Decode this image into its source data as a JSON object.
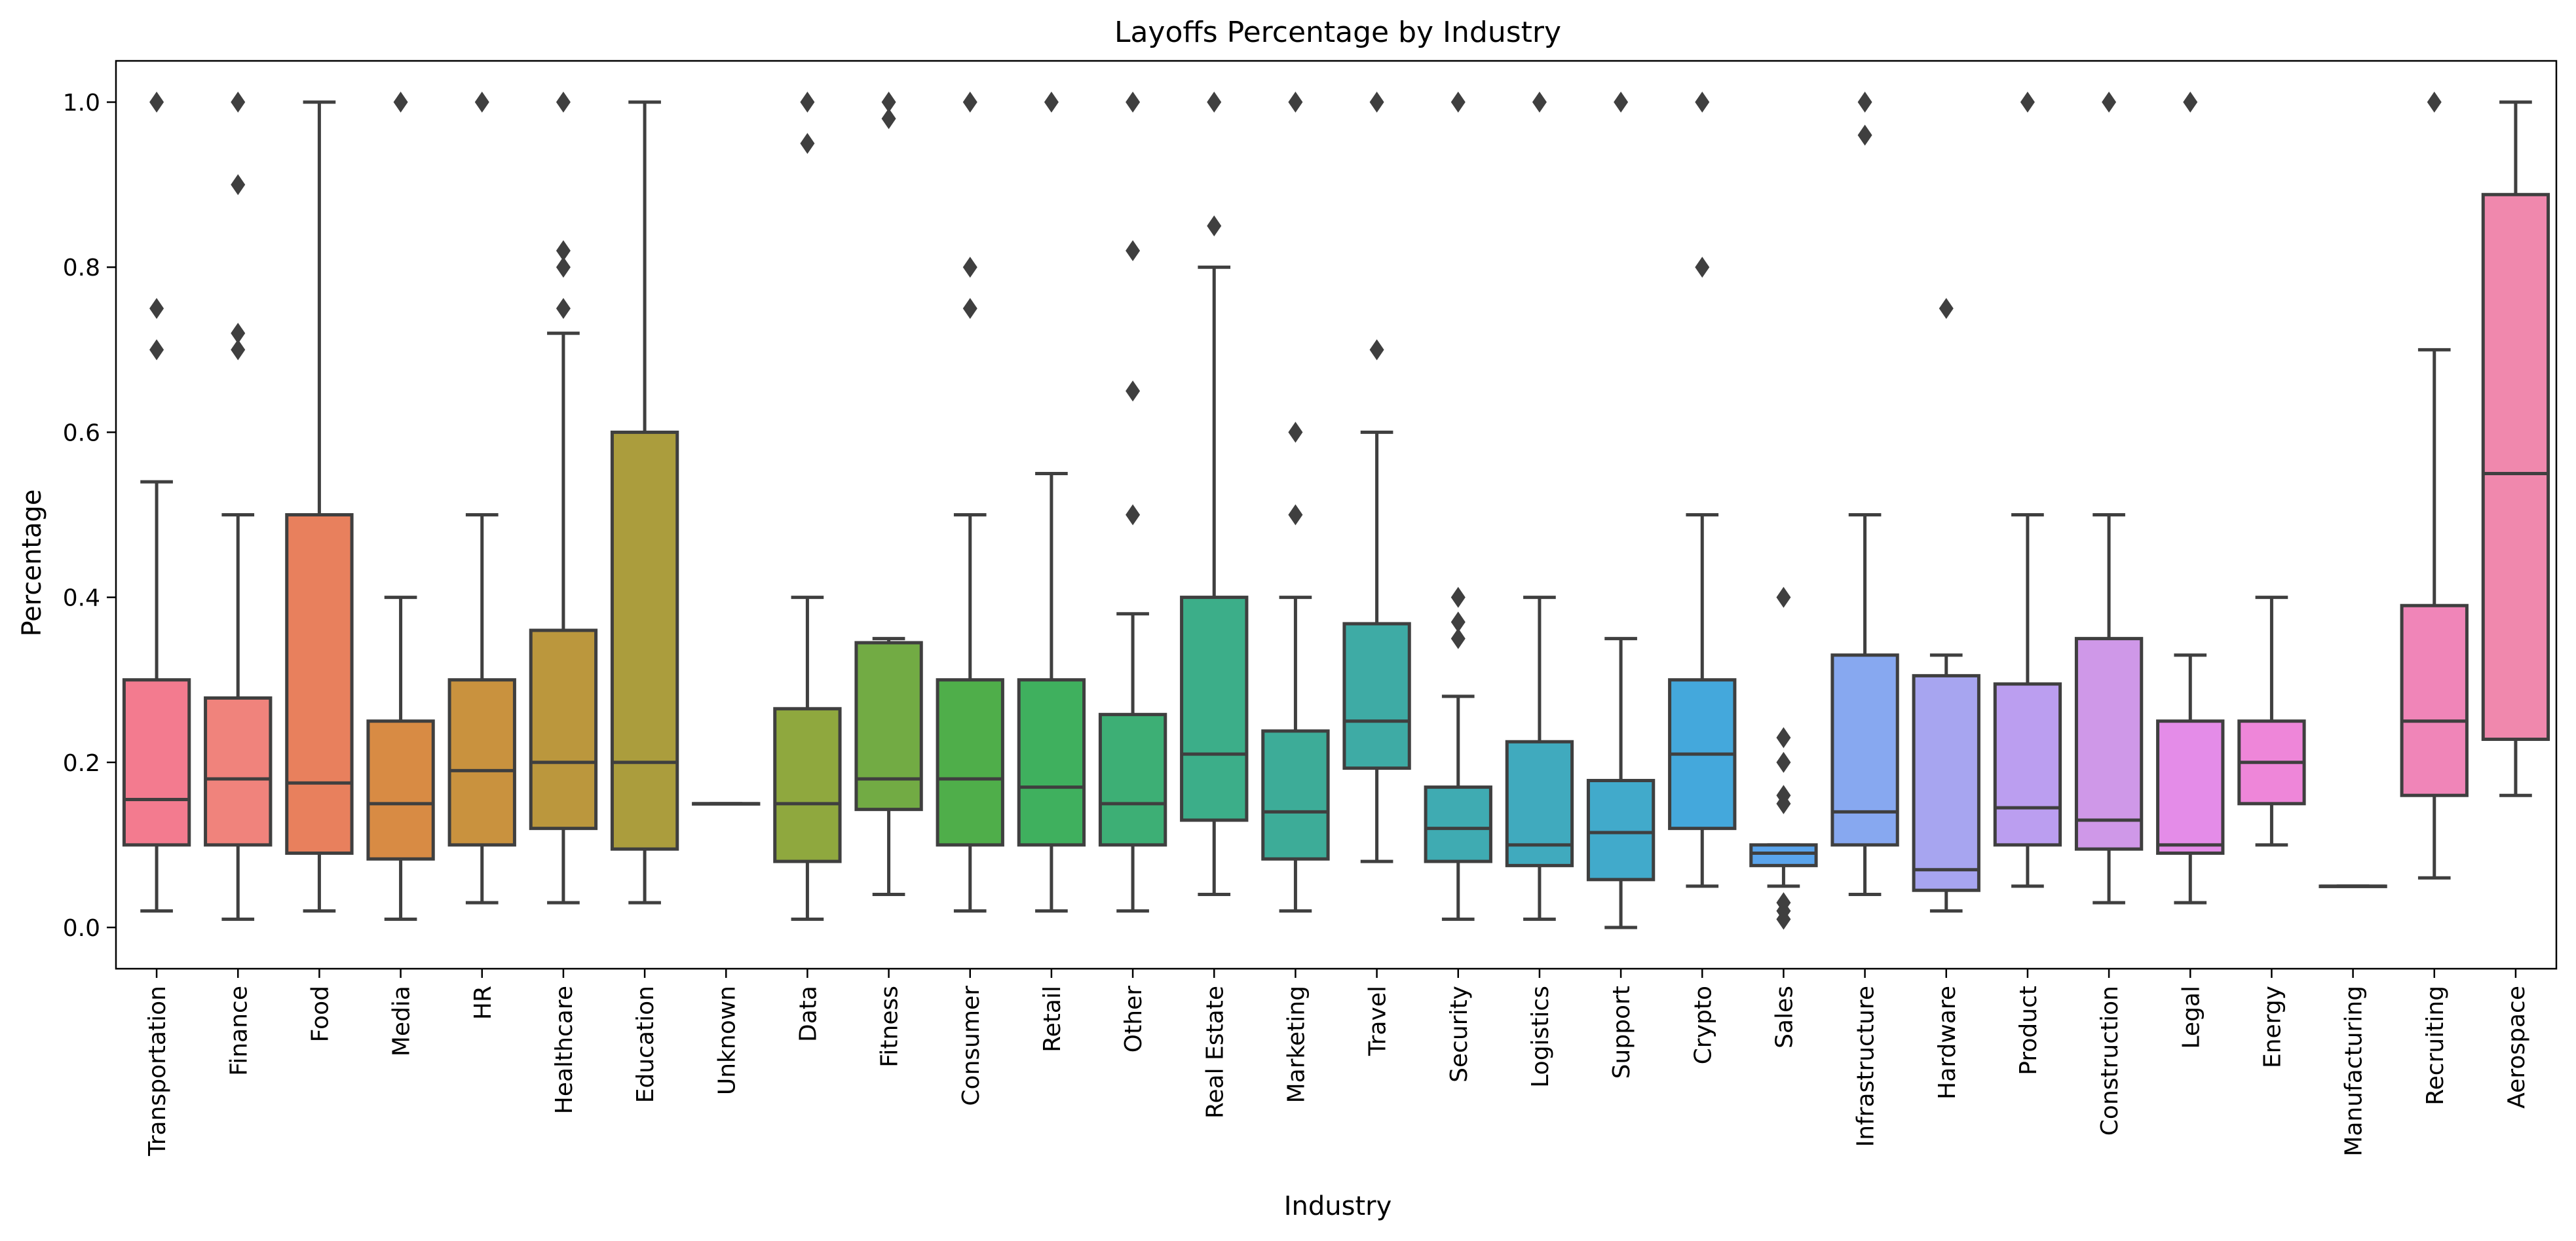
{
  "chart_data": {
    "type": "box",
    "title": "Layoffs Percentage by Industry",
    "xlabel": "Industry",
    "ylabel": "Percentage",
    "ylim": [
      -0.05,
      1.05
    ],
    "yticks": [
      "0.0",
      "0.2",
      "0.4",
      "0.6",
      "0.8",
      "1.0"
    ],
    "grid": false,
    "legend": "none",
    "categories": [
      {
        "name": "Transportation",
        "color": "#f37b8f",
        "stats": {
          "min": 0.02,
          "q1": 0.1,
          "median": 0.155,
          "q3": 0.3,
          "max": 0.54
        },
        "outliers": [
          0.7,
          0.75,
          1.0
        ]
      },
      {
        "name": "Finance",
        "color": "#f0837c",
        "stats": {
          "min": 0.01,
          "q1": 0.1,
          "median": 0.18,
          "q3": 0.278,
          "max": 0.5
        },
        "outliers": [
          0.7,
          0.72,
          0.9,
          1.0
        ]
      },
      {
        "name": "Food",
        "color": "#e8805d",
        "stats": {
          "min": 0.02,
          "q1": 0.09,
          "median": 0.175,
          "q3": 0.5,
          "max": 1.0
        },
        "outliers": []
      },
      {
        "name": "Media",
        "color": "#d88b44",
        "stats": {
          "min": 0.01,
          "q1": 0.083,
          "median": 0.15,
          "q3": 0.25,
          "max": 0.4
        },
        "outliers": [
          1.0
        ]
      },
      {
        "name": "HR",
        "color": "#c9923e",
        "stats": {
          "min": 0.03,
          "q1": 0.1,
          "median": 0.19,
          "q3": 0.3,
          "max": 0.5
        },
        "outliers": [
          1.0
        ]
      },
      {
        "name": "Healthcare",
        "color": "#bb973d",
        "stats": {
          "min": 0.03,
          "q1": 0.12,
          "median": 0.2,
          "q3": 0.36,
          "max": 0.72
        },
        "outliers": [
          0.75,
          0.8,
          0.82,
          1.0
        ]
      },
      {
        "name": "Education",
        "color": "#ab9d3d",
        "stats": {
          "min": 0.03,
          "q1": 0.095,
          "median": 0.2,
          "q3": 0.6,
          "max": 1.0
        },
        "outliers": []
      },
      {
        "name": "Unknown",
        "color": "#9ea53f",
        "stats": {
          "min": 0.15,
          "q1": 0.15,
          "median": 0.15,
          "q3": 0.15,
          "max": 0.15
        },
        "outliers": []
      },
      {
        "name": "Data",
        "color": "#8fa83e",
        "stats": {
          "min": 0.01,
          "q1": 0.08,
          "median": 0.15,
          "q3": 0.265,
          "max": 0.4
        },
        "outliers": [
          0.95,
          1.0
        ]
      },
      {
        "name": "Fitness",
        "color": "#72ab44",
        "stats": {
          "min": 0.04,
          "q1": 0.143,
          "median": 0.18,
          "q3": 0.345,
          "max": 0.35
        },
        "outliers": [
          0.98,
          1.0
        ]
      },
      {
        "name": "Consumer",
        "color": "#4fae4a",
        "stats": {
          "min": 0.02,
          "q1": 0.1,
          "median": 0.18,
          "q3": 0.3,
          "max": 0.5
        },
        "outliers": [
          0.75,
          0.8,
          1.0
        ]
      },
      {
        "name": "Retail",
        "color": "#3fb05e",
        "stats": {
          "min": 0.02,
          "q1": 0.1,
          "median": 0.17,
          "q3": 0.3,
          "max": 0.55
        },
        "outliers": [
          1.0
        ]
      },
      {
        "name": "Other",
        "color": "#3daf75",
        "stats": {
          "min": 0.02,
          "q1": 0.1,
          "median": 0.15,
          "q3": 0.258,
          "max": 0.38
        },
        "outliers": [
          0.5,
          0.65,
          0.82,
          1.0
        ]
      },
      {
        "name": "Real Estate",
        "color": "#3cae89",
        "stats": {
          "min": 0.04,
          "q1": 0.13,
          "median": 0.21,
          "q3": 0.4,
          "max": 0.8
        },
        "outliers": [
          0.85,
          1.0
        ]
      },
      {
        "name": "Marketing",
        "color": "#3dac98",
        "stats": {
          "min": 0.02,
          "q1": 0.083,
          "median": 0.14,
          "q3": 0.238,
          "max": 0.4
        },
        "outliers": [
          0.5,
          0.6,
          1.0
        ]
      },
      {
        "name": "Travel",
        "color": "#3eaba5",
        "stats": {
          "min": 0.08,
          "q1": 0.193,
          "median": 0.25,
          "q3": 0.368,
          "max": 0.6
        },
        "outliers": [
          0.7,
          1.0
        ]
      },
      {
        "name": "Security",
        "color": "#3fabb2",
        "stats": {
          "min": 0.01,
          "q1": 0.08,
          "median": 0.12,
          "q3": 0.17,
          "max": 0.28
        },
        "outliers": [
          0.35,
          0.37,
          0.4,
          1.0
        ]
      },
      {
        "name": "Logistics",
        "color": "#40aabe",
        "stats": {
          "min": 0.01,
          "q1": 0.075,
          "median": 0.1,
          "q3": 0.225,
          "max": 0.4
        },
        "outliers": [
          1.0
        ]
      },
      {
        "name": "Support",
        "color": "#41aacb",
        "stats": {
          "min": 0.0,
          "q1": 0.058,
          "median": 0.115,
          "q3": 0.178,
          "max": 0.35
        },
        "outliers": [
          1.0
        ]
      },
      {
        "name": "Crypto",
        "color": "#44a8dc",
        "stats": {
          "min": 0.05,
          "q1": 0.12,
          "median": 0.21,
          "q3": 0.3,
          "max": 0.5
        },
        "outliers": [
          0.8,
          1.0
        ]
      },
      {
        "name": "Sales",
        "color": "#5aa4ec",
        "stats": {
          "min": 0.05,
          "q1": 0.075,
          "median": 0.09,
          "q3": 0.1,
          "max": 0.1
        },
        "outliers": [
          0.01,
          0.02,
          0.03,
          0.15,
          0.16,
          0.2,
          0.23,
          0.4
        ]
      },
      {
        "name": "Infrastructure",
        "color": "#87a8f0",
        "stats": {
          "min": 0.04,
          "q1": 0.1,
          "median": 0.14,
          "q3": 0.33,
          "max": 0.5
        },
        "outliers": [
          0.96,
          1.0
        ]
      },
      {
        "name": "Hardware",
        "color": "#a7a5f0",
        "stats": {
          "min": 0.02,
          "q1": 0.045,
          "median": 0.07,
          "q3": 0.305,
          "max": 0.33
        },
        "outliers": [
          0.75
        ]
      },
      {
        "name": "Product",
        "color": "#bb9ef0",
        "stats": {
          "min": 0.05,
          "q1": 0.1,
          "median": 0.145,
          "q3": 0.295,
          "max": 0.5
        },
        "outliers": [
          1.0
        ]
      },
      {
        "name": "Construction",
        "color": "#cf98e8",
        "stats": {
          "min": 0.03,
          "q1": 0.095,
          "median": 0.13,
          "q3": 0.35,
          "max": 0.5
        },
        "outliers": [
          1.0
        ]
      },
      {
        "name": "Legal",
        "color": "#e48ce8",
        "stats": {
          "min": 0.03,
          "q1": 0.09,
          "median": 0.1,
          "q3": 0.25,
          "max": 0.33
        },
        "outliers": [
          1.0
        ]
      },
      {
        "name": "Energy",
        "color": "#ee86d9",
        "stats": {
          "min": 0.1,
          "q1": 0.15,
          "median": 0.2,
          "q3": 0.25,
          "max": 0.4
        },
        "outliers": []
      },
      {
        "name": "Manufacturing",
        "color": "#f085c8",
        "stats": {
          "min": 0.05,
          "q1": 0.05,
          "median": 0.05,
          "q3": 0.05,
          "max": 0.05
        },
        "outliers": []
      },
      {
        "name": "Recruiting",
        "color": "#f085b8",
        "stats": {
          "min": 0.06,
          "q1": 0.16,
          "median": 0.25,
          "q3": 0.39,
          "max": 0.7
        },
        "outliers": [
          1.0
        ]
      },
      {
        "name": "Aerospace",
        "color": "#f088ad",
        "stats": {
          "min": 0.16,
          "q1": 0.228,
          "median": 0.55,
          "q3": 0.888,
          "max": 1.0
        },
        "outliers": []
      }
    ]
  }
}
